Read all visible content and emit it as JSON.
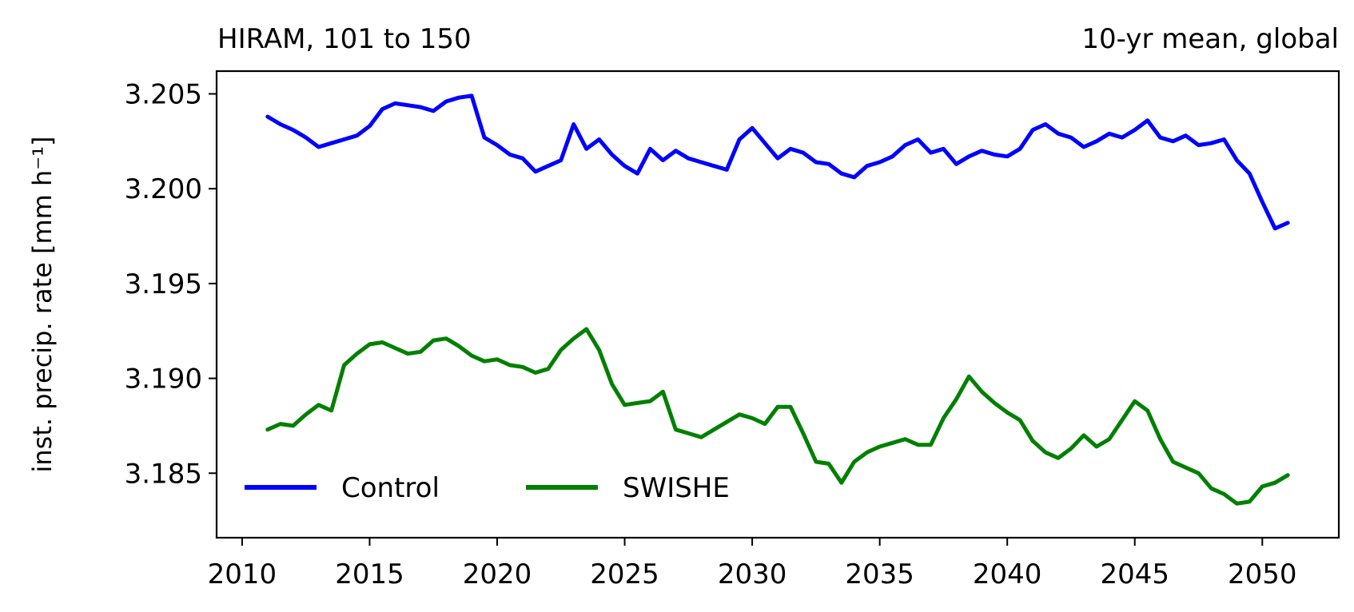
{
  "chart_data": {
    "type": "line",
    "title_left": "HIRAM, 101 to 150",
    "title_right": "10-yr mean, global",
    "xlabel": "",
    "ylabel": "inst. precip. rate [mm h⁻¹]",
    "xlim": [
      2009,
      2053
    ],
    "ylim": [
      3.1816,
      3.2062
    ],
    "xticks": [
      2010,
      2015,
      2020,
      2025,
      2030,
      2035,
      2040,
      2045,
      2050
    ],
    "yticks": [
      "3.185",
      "3.190",
      "3.195",
      "3.200",
      "3.205"
    ],
    "grid": false,
    "legend": {
      "placement": "lower-left",
      "columns": 2
    },
    "series": [
      {
        "name": "Control",
        "color": "#0000ff",
        "x": [
          2011,
          2011.5,
          2012,
          2012.5,
          2013,
          2013.5,
          2014,
          2014.5,
          2015,
          2015.5,
          2016,
          2016.5,
          2017,
          2017.5,
          2018,
          2018.5,
          2019,
          2019.5,
          2020,
          2020.5,
          2021,
          2021.5,
          2022,
          2022.5,
          2023,
          2023.5,
          2024,
          2024.5,
          2025,
          2025.5,
          2026,
          2026.5,
          2027,
          2027.5,
          2028,
          2028.5,
          2029,
          2029.5,
          2030,
          2030.5,
          2031,
          2031.5,
          2032,
          2032.5,
          2033,
          2033.5,
          2034,
          2034.5,
          2035,
          2035.5,
          2036,
          2036.5,
          2037,
          2037.5,
          2038,
          2038.5,
          2039,
          2039.5,
          2040,
          2040.5,
          2041,
          2041.5,
          2042,
          2042.5,
          2043,
          2043.5,
          2044,
          2044.5,
          2045,
          2045.5,
          2046,
          2046.5,
          2047,
          2047.5,
          2048,
          2048.5,
          2049,
          2049.5,
          2050,
          2050.5,
          2051
        ],
        "y": [
          3.2038,
          3.2034,
          3.2031,
          3.2027,
          3.2022,
          3.2024,
          3.2026,
          3.2028,
          3.2033,
          3.2042,
          3.2045,
          3.2044,
          3.2043,
          3.2041,
          3.2046,
          3.2048,
          3.2049,
          3.2027,
          3.2023,
          3.2018,
          3.2016,
          3.2009,
          3.2012,
          3.2015,
          3.2034,
          3.2021,
          3.2026,
          3.2018,
          3.2012,
          3.2008,
          3.2021,
          3.2015,
          3.202,
          3.2016,
          3.2014,
          3.2012,
          3.201,
          3.2026,
          3.2032,
          3.2024,
          3.2016,
          3.2021,
          3.2019,
          3.2014,
          3.2013,
          3.2008,
          3.2006,
          3.2012,
          3.2014,
          3.2017,
          3.2023,
          3.2026,
          3.2019,
          3.2021,
          3.2013,
          3.2017,
          3.202,
          3.2018,
          3.2017,
          3.2021,
          3.2031,
          3.2034,
          3.2029,
          3.2027,
          3.2022,
          3.2025,
          3.2029,
          3.2027,
          3.2031,
          3.2036,
          3.2027,
          3.2025,
          3.2028,
          3.2023,
          3.2024,
          3.2026,
          3.2015,
          3.2008,
          3.1993,
          3.1979,
          3.1982
        ]
      },
      {
        "name": "SWISHE",
        "color": "#008000",
        "x": [
          2011,
          2011.5,
          2012,
          2012.5,
          2013,
          2013.5,
          2014,
          2014.5,
          2015,
          2015.5,
          2016,
          2016.5,
          2017,
          2017.5,
          2018,
          2018.5,
          2019,
          2019.5,
          2020,
          2020.5,
          2021,
          2021.5,
          2022,
          2022.5,
          2023,
          2023.5,
          2024,
          2024.5,
          2025,
          2025.5,
          2026,
          2026.5,
          2027,
          2027.5,
          2028,
          2028.5,
          2029,
          2029.5,
          2030,
          2030.5,
          2031,
          2031.5,
          2032,
          2032.5,
          2033,
          2033.5,
          2034,
          2034.5,
          2035,
          2035.5,
          2036,
          2036.5,
          2037,
          2037.5,
          2038,
          2038.5,
          2039,
          2039.5,
          2040,
          2040.5,
          2041,
          2041.5,
          2042,
          2042.5,
          2043,
          2043.5,
          2044,
          2044.5,
          2045,
          2045.5,
          2046,
          2046.5,
          2047,
          2047.5,
          2048,
          2048.5,
          2049,
          2049.5,
          2050,
          2050.5,
          2051
        ],
        "y": [
          3.1873,
          3.1876,
          3.1875,
          3.1881,
          3.1886,
          3.1883,
          3.1907,
          3.1913,
          3.1918,
          3.1919,
          3.1916,
          3.1913,
          3.1914,
          3.192,
          3.1921,
          3.1917,
          3.1912,
          3.1909,
          3.191,
          3.1907,
          3.1906,
          3.1903,
          3.1905,
          3.1915,
          3.1921,
          3.1926,
          3.1915,
          3.1897,
          3.1886,
          3.1887,
          3.1888,
          3.1893,
          3.1873,
          3.1871,
          3.1869,
          3.1873,
          3.1877,
          3.1881,
          3.1879,
          3.1876,
          3.1885,
          3.1885,
          3.1871,
          3.1856,
          3.1855,
          3.1845,
          3.1856,
          3.1861,
          3.1864,
          3.1866,
          3.1868,
          3.1865,
          3.1865,
          3.1879,
          3.1889,
          3.1901,
          3.1893,
          3.1887,
          3.1882,
          3.1878,
          3.1867,
          3.1861,
          3.1858,
          3.1863,
          3.187,
          3.1864,
          3.1868,
          3.1878,
          3.1888,
          3.1883,
          3.1868,
          3.1856,
          3.1853,
          3.185,
          3.1842,
          3.1839,
          3.1834,
          3.1835,
          3.1843,
          3.1845,
          3.1849
        ]
      }
    ]
  }
}
